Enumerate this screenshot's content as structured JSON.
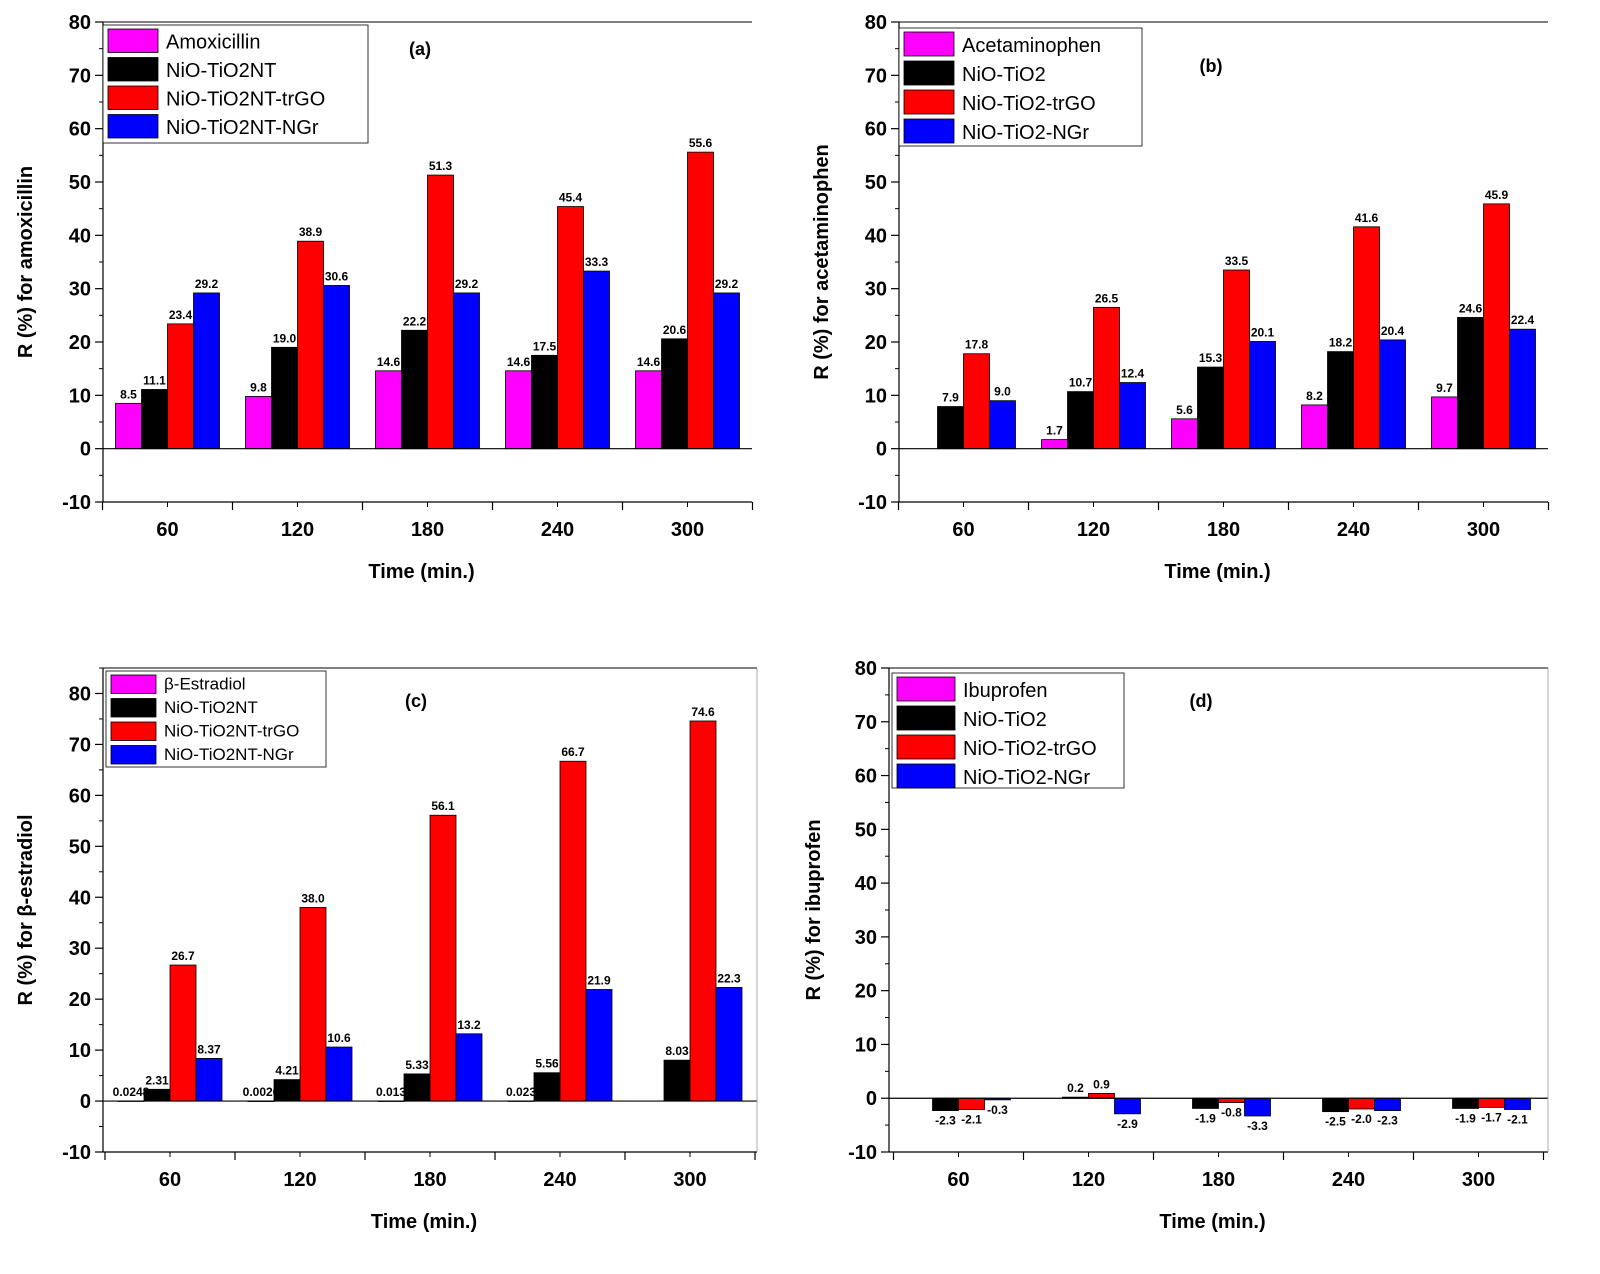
{
  "chart_data": [
    {
      "type": "bar",
      "panel_label": "(a)",
      "xlabel": "Time (min.)",
      "ylabel": "R (%) for amoxicillin",
      "ylim": [
        -10,
        80
      ],
      "yticks": [
        "-10",
        "0",
        "10",
        "20",
        "30",
        "40",
        "50",
        "60",
        "70",
        "80"
      ],
      "categories": [
        "60",
        "120",
        "180",
        "240",
        "300"
      ],
      "legend_position": "top-left",
      "series": [
        {
          "name": "Amoxicillin",
          "color": "#ff00ff",
          "values": [
            8.5,
            9.8,
            14.6,
            14.6,
            14.6
          ],
          "labels": [
            "8.5",
            "9.8",
            "14.6",
            "14.6",
            "14.6"
          ]
        },
        {
          "name": "NiO-TiO2NT",
          "color": "#000000",
          "values": [
            11.1,
            19.0,
            22.2,
            17.5,
            20.6
          ],
          "labels": [
            "11.1",
            "19.0",
            "22.2",
            "17.5",
            "20.6"
          ]
        },
        {
          "name": "NiO-TiO2NT-trGO",
          "color": "#ff0000",
          "values": [
            23.4,
            38.9,
            51.3,
            45.4,
            55.6
          ],
          "labels": [
            "23.4",
            "38.9",
            "51.3",
            "45.4",
            "55.6"
          ]
        },
        {
          "name": "NiO-TiO2NT-NGr",
          "color": "#0000ff",
          "values": [
            29.2,
            30.6,
            29.2,
            33.3,
            29.2
          ],
          "labels": [
            "29.2",
            "30.6",
            "29.2",
            "33.3",
            "29.2"
          ]
        }
      ]
    },
    {
      "type": "bar",
      "panel_label": "(b)",
      "xlabel": "Time (min.)",
      "ylabel": "R (%) for acetaminophen",
      "ylim": [
        -10,
        80
      ],
      "yticks": [
        "-10",
        "0",
        "10",
        "20",
        "30",
        "40",
        "50",
        "60",
        "70",
        "80"
      ],
      "categories": [
        "60",
        "120",
        "180",
        "240",
        "300"
      ],
      "legend_position": "top-left",
      "series": [
        {
          "name": "Acetaminophen",
          "color": "#ff00ff",
          "values": [
            0,
            1.7,
            5.6,
            8.2,
            9.7
          ],
          "labels": [
            "",
            "1.7",
            "5.6",
            "8.2",
            "9.7"
          ]
        },
        {
          "name": "NiO-TiO2",
          "color": "#000000",
          "values": [
            7.9,
            10.7,
            15.3,
            18.2,
            24.6
          ],
          "labels": [
            "7.9",
            "10.7",
            "15.3",
            "18.2",
            "24.6"
          ]
        },
        {
          "name": "NiO-TiO2-trGO",
          "color": "#ff0000",
          "values": [
            17.8,
            26.5,
            33.5,
            41.6,
            45.9
          ],
          "labels": [
            "17.8",
            "26.5",
            "33.5",
            "41.6",
            "45.9"
          ]
        },
        {
          "name": "NiO-TiO2-NGr",
          "color": "#0000ff",
          "values": [
            9.0,
            12.4,
            20.1,
            20.4,
            22.4
          ],
          "labels": [
            "9.0",
            "12.4",
            "20.1",
            "20.4",
            "22.4"
          ]
        }
      ]
    },
    {
      "type": "bar",
      "panel_label": "(c)",
      "xlabel": "Time (min.)",
      "ylabel": "R (%) for β-estradiol",
      "ylim": [
        -10,
        85
      ],
      "yticks": [
        "-10",
        "0",
        "10",
        "20",
        "30",
        "40",
        "50",
        "60",
        "70",
        "80"
      ],
      "categories": [
        "60",
        "120",
        "180",
        "240",
        "300"
      ],
      "legend_position": "top-left",
      "series": [
        {
          "name": "β-Estradiol",
          "color": "#ff00ff",
          "values": [
            0.0248,
            0.0026,
            0.013,
            0.023,
            0
          ],
          "labels": [
            "0.0248",
            "0.0026",
            "0.013",
            "0.023",
            ""
          ]
        },
        {
          "name": "NiO-TiO2NT",
          "color": "#000000",
          "values": [
            2.31,
            4.21,
            5.33,
            5.56,
            8.03
          ],
          "labels": [
            "2.31",
            "4.21",
            "5.33",
            "5.56",
            "8.03"
          ]
        },
        {
          "name": "NiO-TiO2NT-trGO",
          "color": "#ff0000",
          "values": [
            26.7,
            38.0,
            56.1,
            66.7,
            74.6
          ],
          "labels": [
            "26.7",
            "38.0",
            "56.1",
            "66.7",
            "74.6"
          ]
        },
        {
          "name": "NiO-TiO2NT-NGr",
          "color": "#0000ff",
          "values": [
            8.37,
            10.6,
            13.2,
            21.9,
            22.3
          ],
          "labels": [
            "8.37",
            "10.6",
            "13.2",
            "21.9",
            "22.3"
          ]
        }
      ]
    },
    {
      "type": "bar",
      "panel_label": "(d)",
      "xlabel": "Time (min.)",
      "ylabel": "R (%) for ibuprofen",
      "ylim": [
        -10,
        80
      ],
      "yticks": [
        "-10",
        "0",
        "10",
        "20",
        "30",
        "40",
        "50",
        "60",
        "70",
        "80"
      ],
      "categories": [
        "60",
        "120",
        "180",
        "240",
        "300"
      ],
      "legend_position": "top-left",
      "series": [
        {
          "name": "Ibuprofen",
          "color": "#ff00ff",
          "values": [
            0,
            0,
            0,
            0,
            0
          ],
          "labels": [
            "",
            "",
            "",
            "",
            ""
          ]
        },
        {
          "name": "NiO-TiO2",
          "color": "#000000",
          "values": [
            -2.3,
            0.2,
            -1.9,
            -2.5,
            -1.9
          ],
          "labels": [
            "-2.3",
            "0.2",
            "-1.9",
            "-2.5",
            "-1.9"
          ]
        },
        {
          "name": "NiO-TiO2-trGO",
          "color": "#ff0000",
          "values": [
            -2.1,
            0.9,
            -0.8,
            -2.0,
            -1.7
          ],
          "labels": [
            "-2.1",
            "0.9",
            "-0.8",
            "-2.0",
            "-1.7"
          ]
        },
        {
          "name": "NiO-TiO2-NGr",
          "color": "#0000ff",
          "values": [
            -0.3,
            -2.9,
            -3.3,
            -2.3,
            -2.1
          ],
          "labels": [
            "-0.3",
            "-2.9",
            "-3.3",
            "-2.3",
            "-2.1"
          ]
        }
      ]
    }
  ]
}
